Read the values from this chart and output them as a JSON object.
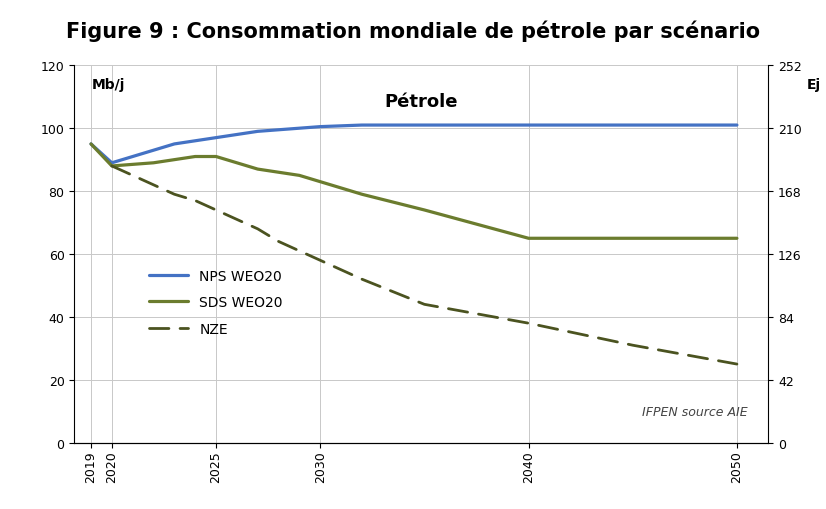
{
  "title": "Figure 9 : Consommation mondiale de pétrole par scénario",
  "subtitle": "Pétrole",
  "ylabel_left": "Mb/j",
  "ylabel_right": "Ej",
  "source_text": "IFPEN source AIE",
  "ylim_left": [
    0,
    120
  ],
  "ylim_right": [
    0,
    252
  ],
  "yticks_left": [
    0,
    20,
    40,
    60,
    80,
    100,
    120
  ],
  "yticks_right": [
    0,
    42,
    84,
    126,
    168,
    210,
    252
  ],
  "xticks": [
    2019,
    2020,
    2025,
    2030,
    2040,
    2050
  ],
  "xlim": [
    2018.2,
    2051.5
  ],
  "nps_x": [
    2019,
    2020,
    2021,
    2022,
    2023,
    2024,
    2025,
    2026,
    2027,
    2028,
    2029,
    2030,
    2032,
    2035,
    2040,
    2045,
    2050
  ],
  "nps_y": [
    95,
    89,
    91,
    93,
    95,
    96,
    97,
    98,
    99,
    99.5,
    100,
    100.5,
    101,
    101,
    101,
    101,
    101
  ],
  "sds_x": [
    2019,
    2020,
    2021,
    2022,
    2023,
    2024,
    2025,
    2026,
    2027,
    2028,
    2029,
    2030,
    2032,
    2035,
    2040,
    2045,
    2050
  ],
  "sds_y": [
    95,
    88,
    88.5,
    89,
    90,
    91,
    91,
    89,
    87,
    86,
    85,
    83,
    79,
    74,
    65,
    65,
    65
  ],
  "nze_x": [
    2020,
    2021,
    2022,
    2023,
    2024,
    2025,
    2026,
    2027,
    2028,
    2029,
    2030,
    2032,
    2035,
    2040,
    2045,
    2050
  ],
  "nze_y": [
    88,
    85,
    82,
    79,
    77,
    74,
    71,
    68,
    64,
    61,
    58,
    52,
    44,
    38,
    31,
    25
  ],
  "nps_color": "#4472C4",
  "sds_color": "#6B7C2E",
  "nze_color": "#4B5320",
  "background_color": "#ffffff",
  "grid_color": "#c8c8c8",
  "title_fontsize": 15,
  "label_fontsize": 10,
  "tick_fontsize": 9,
  "legend_fontsize": 10,
  "subtitle_fontsize": 13
}
